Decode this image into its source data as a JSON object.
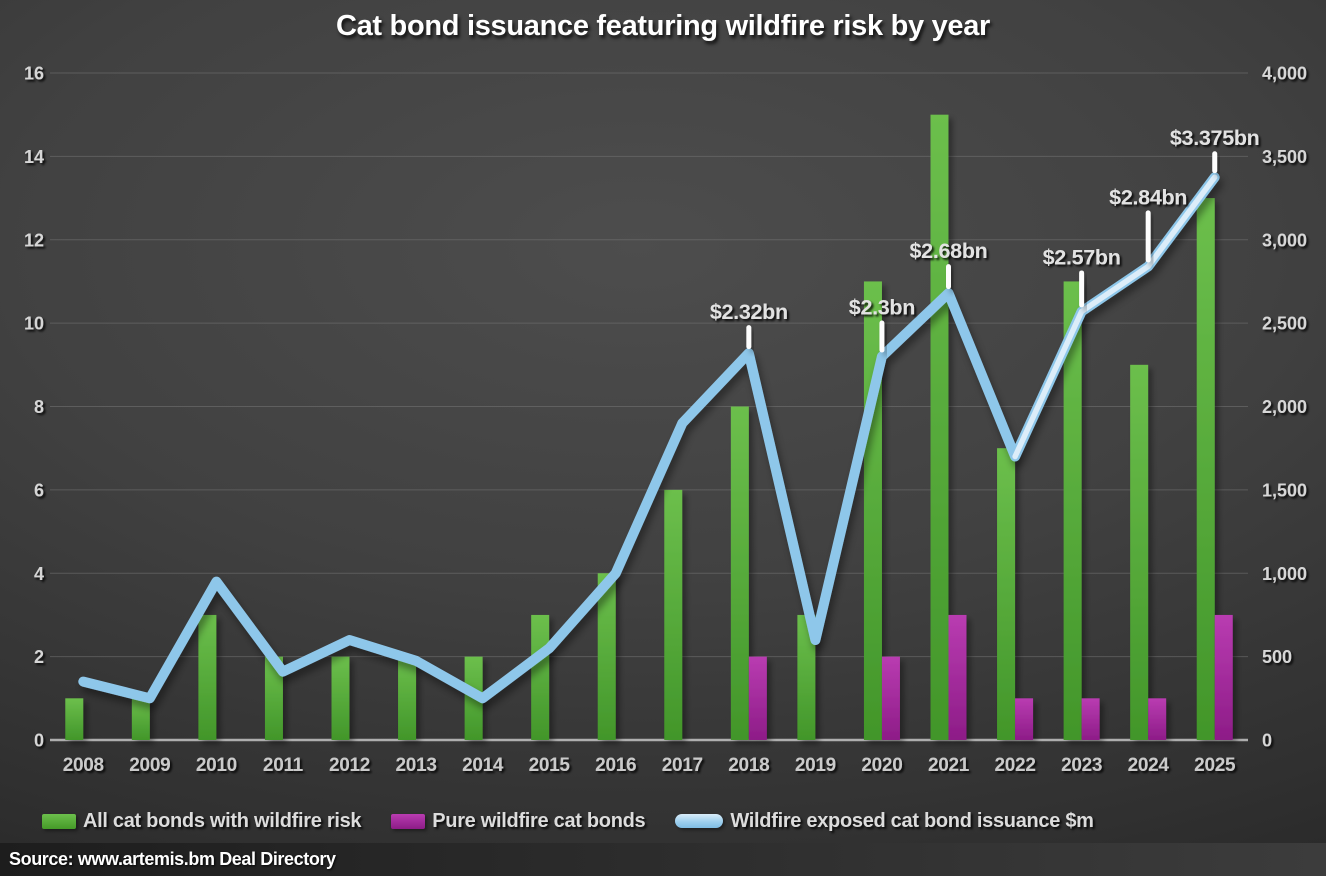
{
  "title": "Cat bond issuance featuring wildfire risk by year",
  "source": "Source: www.artemis.bm Deal Directory",
  "legend": {
    "items": [
      {
        "label": "All cat bonds with wildfire risk",
        "swatch": "green-bar-swatch"
      },
      {
        "label": "Pure wildfire cat bonds",
        "swatch": "magenta-bar-swatch"
      },
      {
        "label": "Wildfire exposed cat bond issuance $m",
        "swatch": "blue-line-swatch"
      }
    ]
  },
  "colors": {
    "green_top": "#6cbf4c",
    "green_bottom": "#42962a",
    "magenta_top": "#b93cb1",
    "magenta_bottom": "#8d1c87",
    "line_blue": "#8ec7ea",
    "line_pale": "#dcedf9",
    "annotation_text": "#e2e2e2",
    "axis_text": "#d6d6d6",
    "x_axis_text": "#cacaca",
    "gridline": "#7a7a7a",
    "baseline": "#b5b5b5",
    "tick_marker": "#fdfdfd"
  },
  "chart_data": {
    "type": "bar+line combo",
    "title": "Cat bond issuance featuring wildfire risk by year",
    "categories": [
      "2008",
      "2009",
      "2010",
      "2011",
      "2012",
      "2013",
      "2014",
      "2015",
      "2016",
      "2017",
      "2018",
      "2019",
      "2020",
      "2021",
      "2022",
      "2023",
      "2024",
      "2025"
    ],
    "series": [
      {
        "name": "All cat bonds with wildfire risk",
        "type": "bar",
        "axis": "left",
        "values": [
          1,
          1,
          3,
          2,
          2,
          2,
          2,
          3,
          4,
          6,
          8,
          3,
          11,
          15,
          7,
          11,
          9,
          13
        ]
      },
      {
        "name": "Pure wildfire cat bonds",
        "type": "bar",
        "axis": "left",
        "values": [
          0,
          0,
          0,
          0,
          0,
          0,
          0,
          0,
          0,
          0,
          2,
          0,
          2,
          3,
          1,
          1,
          1,
          3
        ]
      },
      {
        "name": "Wildfire exposed cat bond issuance $m",
        "type": "line",
        "axis": "right",
        "values": [
          350,
          250,
          950,
          410,
          600,
          475,
          250,
          550,
          1000,
          1900,
          2320,
          600,
          2300,
          2680,
          1700,
          2570,
          2840,
          3375
        ]
      }
    ],
    "annotations": [
      {
        "year": "2018",
        "text": "$2.32bn",
        "offset": 40
      },
      {
        "year": "2020",
        "text": "$2.3bn",
        "offset": 48
      },
      {
        "year": "2021",
        "text": "$2.68bn",
        "offset": 41
      },
      {
        "year": "2023",
        "text": "$2.57bn",
        "offset": 53
      },
      {
        "year": "2024",
        "text": "$2.84bn",
        "offset": 68
      },
      {
        "year": "2025",
        "text": "$3.375bn",
        "offset": 38
      }
    ],
    "left_axis": {
      "min": 0,
      "max": 16,
      "step": 2,
      "ticks": [
        "0",
        "2",
        "4",
        "6",
        "8",
        "10",
        "12",
        "14",
        "16"
      ]
    },
    "right_axis": {
      "min": 0,
      "max": 4000,
      "step": 500,
      "ticks": [
        "0",
        "500",
        "1,000",
        "1,500",
        "2,000",
        "2,500",
        "3,000",
        "3,500",
        "4,000"
      ]
    },
    "grid": true,
    "legend_position": "bottom"
  }
}
